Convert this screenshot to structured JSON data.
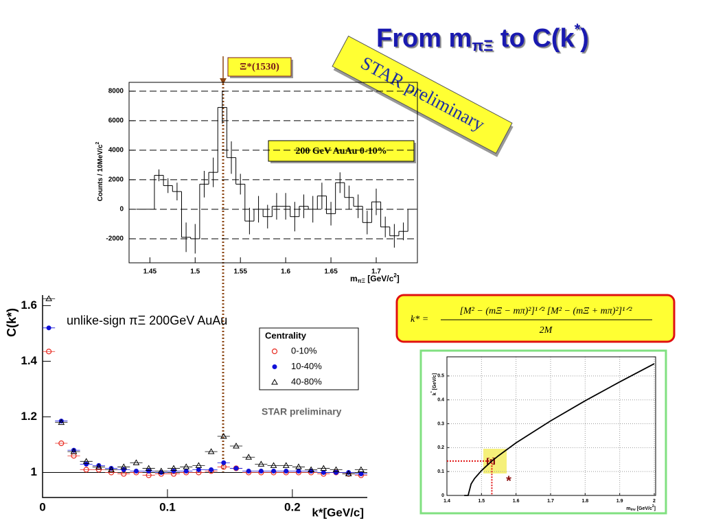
{
  "slide_title": {
    "text": "From m",
    "sub": "πΞ",
    "mid": " to C(k",
    "sup": "*",
    "end": ")"
  },
  "formula": {
    "lhs": "k* =",
    "numerator": "[M² − (mΞ − mπ)²]¹ᐟ² [M² − (mΞ + mπ)²]¹ᐟ²",
    "denominator": "2M"
  },
  "chart_data": [
    {
      "type": "histogram",
      "y_label": {
        "text": "Counts / 10MeV/c",
        "sup": "2"
      },
      "x_label": {
        "text": "m",
        "sub": "πΞ",
        "unit": " [GeV/c",
        "sup": "2",
        "end": "]"
      },
      "bins": [
        1.435,
        1.445,
        1.455,
        1.465,
        1.475,
        1.485,
        1.495,
        1.505,
        1.515,
        1.525,
        1.535,
        1.545,
        1.555,
        1.565,
        1.575,
        1.585,
        1.595,
        1.605,
        1.615,
        1.625,
        1.635,
        1.645,
        1.655,
        1.665,
        1.675,
        1.685,
        1.695,
        1.705,
        1.715,
        1.725,
        1.735,
        1.745
      ],
      "values": [
        0,
        0,
        2300,
        1600,
        1200,
        -1900,
        -2000,
        1700,
        2500,
        6900,
        3500,
        1700,
        -800,
        0,
        -500,
        200,
        200,
        -500,
        200,
        0,
        900,
        -300,
        1800,
        800,
        200,
        -900,
        500,
        -1200,
        -1800,
        -1500,
        0
      ],
      "errors": [
        0,
        0,
        400,
        500,
        600,
        1000,
        1000,
        900,
        1000,
        1100,
        1100,
        700,
        900,
        900,
        800,
        900,
        900,
        1000,
        800,
        900,
        900,
        800,
        700,
        800,
        800,
        800,
        900,
        700,
        800,
        600,
        0
      ],
      "color": "#000000",
      "xlim": [
        1.427,
        1.7455
      ],
      "ylim": [
        -3630,
        8600
      ],
      "xticks": [
        1.45,
        1.5,
        1.55,
        1.6,
        1.65,
        1.7
      ],
      "yticks": [
        -2000,
        0,
        2000,
        4000,
        6000,
        8000
      ],
      "grid": "y",
      "grid_style": "dashed",
      "annotations": [
        "Ξ*(1530)",
        "200 GeV AuAu 0-10%",
        "STAR preliminary"
      ]
    },
    {
      "type": "scatter",
      "y_label": "C(k*)",
      "x_label": "k*[GeV/c]",
      "x": [
        0.005,
        0.015,
        0.025,
        0.035,
        0.045,
        0.055,
        0.065,
        0.075,
        0.085,
        0.095,
        0.105,
        0.115,
        0.125,
        0.135,
        0.145,
        0.155,
        0.165,
        0.175,
        0.185,
        0.195,
        0.205,
        0.215,
        0.225,
        0.235,
        0.245,
        0.255
      ],
      "series": [
        {
          "name": "0-10%",
          "color": "#e8281e",
          "marker": "open-circle",
          "values": [
            1.435,
            1.105,
            1.06,
            1.01,
            1.01,
            1.0,
            0.995,
            1.0,
            0.99,
            0.995,
            0.995,
            1.0,
            1.0,
            1.005,
            1.02,
            1.015,
            1.0,
            1.0,
            1.0,
            1.0,
            1.0,
            1.0,
            0.995,
            1.0,
            0.995,
            0.99
          ]
        },
        {
          "name": "10-40%",
          "color": "#1010d8",
          "marker": "dot",
          "values": [
            1.52,
            1.185,
            1.08,
            1.03,
            1.025,
            1.015,
            1.01,
            1.005,
            1.005,
            1.0,
            1.005,
            1.005,
            1.01,
            1.01,
            1.035,
            1.015,
            1.005,
            1.005,
            1.005,
            1.005,
            1.005,
            1.005,
            1.0,
            1.0,
            1.0,
            0.995
          ]
        },
        {
          "name": "40-80%",
          "color": "#000000",
          "marker": "open-triangle",
          "values": [
            1.625,
            1.18,
            1.075,
            1.04,
            1.02,
            1.01,
            1.02,
            1.035,
            1.015,
            1.005,
            1.015,
            1.02,
            1.025,
            1.075,
            1.13,
            1.095,
            1.055,
            1.03,
            1.025,
            1.025,
            1.02,
            1.01,
            1.015,
            1.01,
            0.995,
            1.01
          ]
        }
      ],
      "legend_title": "Centrality",
      "xlim": [
        0,
        0.26
      ],
      "ylim": [
        0.91,
        1.638
      ],
      "xticks": [
        0,
        0.1,
        0.2
      ],
      "yticks": [
        1,
        1.2,
        1.4,
        1.6
      ],
      "annotations": [
        "unlike-sign πΞ  200GeV AuAu",
        "STAR preliminary"
      ]
    },
    {
      "type": "line",
      "y_label": {
        "text": "k",
        "sup": "*",
        "end": " [GeV/c]"
      },
      "x_label": {
        "text": "m",
        "sub": "inv",
        "unit": " [GeV/c",
        "sup": "2",
        "end": "]"
      },
      "x": [
        1.45,
        1.4613,
        1.47,
        1.48,
        1.5,
        1.53,
        1.55,
        1.6,
        1.7,
        1.8,
        1.9,
        2.0
      ],
      "values": [
        0,
        0,
        0.048,
        0.071,
        0.104,
        0.144,
        0.167,
        0.22,
        0.312,
        0.396,
        0.475,
        0.551
      ],
      "color": "#000000",
      "highlight": {
        "x": 1.53,
        "y": 0.144
      },
      "xlim": [
        1.4,
        2.004
      ],
      "ylim": [
        0,
        0.58
      ],
      "xticks": [
        1.4,
        1.5,
        1.6,
        1.7,
        1.8,
        1.9,
        2
      ],
      "yticks": [
        0,
        0.1,
        0.2,
        0.3,
        0.4,
        0.5
      ],
      "grid": "both",
      "grid_style": "dotted",
      "annotations": [
        "Ξ",
        "*"
      ]
    }
  ]
}
